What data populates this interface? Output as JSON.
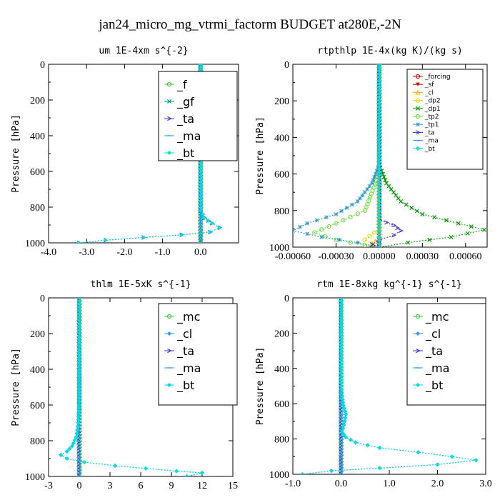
{
  "figure": {
    "title": "jan24_micro_mg_vtrmi_factorm  BUDGET at280E,-2N"
  },
  "chart_data": [
    {
      "type": "line",
      "title": "um   1E-4xm s^{-2}",
      "ylabel": "Pressure [hPa]",
      "xlim": [
        -4.0,
        1.0
      ],
      "ylim": [
        1000,
        0
      ],
      "xticks": [
        -4.0,
        -3.0,
        -2.0,
        -1.0,
        0.0
      ],
      "xtick_labels": [
        "-4.0",
        "-3.0",
        "-2.0",
        "-1.0",
        "0.0"
      ],
      "yticks": [
        0,
        200,
        400,
        600,
        800,
        1000
      ],
      "ytick_labels": [
        "0",
        "200",
        "400",
        "600",
        "800",
        "1000"
      ],
      "legend": {
        "position": "top-right",
        "size": "large"
      },
      "series": [
        {
          "name": "_f",
          "color": "#33cc33",
          "marker": "circle",
          "points": [
            [
              0,
              0
            ],
            [
              0,
              200
            ],
            [
              0,
              400
            ],
            [
              0,
              600
            ],
            [
              0,
              800
            ],
            [
              0,
              900
            ],
            [
              0,
              1000
            ]
          ]
        },
        {
          "name": "_gf",
          "color": "#009999",
          "marker": "x",
          "points": [
            [
              0,
              0
            ],
            [
              0,
              200
            ],
            [
              0,
              400
            ],
            [
              0,
              600
            ],
            [
              0,
              800
            ],
            [
              0,
              900
            ],
            [
              0,
              1000
            ]
          ]
        },
        {
          "name": "_ta",
          "color": "#3333cc",
          "marker": "arrow",
          "points": [
            [
              0,
              0
            ],
            [
              0,
              820
            ],
            [
              0.1,
              860
            ],
            [
              0.3,
              890
            ],
            [
              0.5,
              915
            ],
            [
              0.25,
              940
            ],
            [
              -0.5,
              955
            ],
            [
              -1.5,
              970
            ],
            [
              -2.5,
              985
            ],
            [
              -3.2,
              1000
            ]
          ]
        },
        {
          "name": "_ma",
          "color": "#3399ff",
          "marker": "dash",
          "points": [
            [
              0,
              0
            ],
            [
              0,
              1000
            ]
          ]
        },
        {
          "name": "_bt",
          "color": "#00dddd",
          "marker": "diamond",
          "points": [
            [
              0,
              0
            ],
            [
              0,
              820
            ],
            [
              0.1,
              860
            ],
            [
              0.3,
              890
            ],
            [
              0.5,
              915
            ],
            [
              0.25,
              940
            ],
            [
              -0.5,
              955
            ],
            [
              -1.5,
              970
            ],
            [
              -2.5,
              985
            ],
            [
              -3.2,
              1000
            ]
          ]
        }
      ]
    },
    {
      "type": "line",
      "title": "rtpthlp   1E-4x(kg K)/(kg s)",
      "ylabel": "Pressure [hPa]",
      "xlim": [
        -0.0006,
        0.00075
      ],
      "ylim": [
        1000,
        0
      ],
      "xticks": [
        -0.0006,
        -0.0003,
        0.0,
        0.0003,
        0.0006
      ],
      "xtick_labels": [
        "-0.00060",
        "-0.00030",
        "0.00000",
        "0.00030",
        "0.00060"
      ],
      "yticks": [
        0,
        200,
        400,
        600,
        800,
        1000
      ],
      "ytick_labels": [
        "0",
        "200",
        "400",
        "600",
        "800",
        "1000"
      ],
      "legend": {
        "position": "top-right",
        "size": "small"
      },
      "series": [
        {
          "name": "_forcing",
          "color": "#cc0000",
          "marker": "circle",
          "points": [
            [
              0,
              0
            ],
            [
              0,
              200
            ],
            [
              0,
              400
            ],
            [
              0,
              600
            ],
            [
              0,
              800
            ],
            [
              0,
              1000
            ]
          ]
        },
        {
          "name": "_sf",
          "color": "#cc0000",
          "marker": "triangle-down",
          "points": [
            [
              0,
              0
            ],
            [
              0,
              200
            ],
            [
              0,
              400
            ],
            [
              0,
              600
            ],
            [
              0,
              800
            ],
            [
              0,
              1000
            ]
          ]
        },
        {
          "name": "_cl",
          "color": "#ffaa00",
          "marker": "triangle-up",
          "points": [
            [
              0,
              0
            ],
            [
              0,
              950
            ],
            [
              -5e-05,
              985
            ],
            [
              0,
              1000
            ]
          ]
        },
        {
          "name": "_dp2",
          "color": "#dddd00",
          "marker": "circle",
          "points": [
            [
              0,
              0
            ],
            [
              0,
              900
            ],
            [
              -0.0001,
              960
            ],
            [
              0,
              1000
            ]
          ]
        },
        {
          "name": "_dp1",
          "color": "#009900",
          "marker": "x",
          "points": [
            [
              0,
              0
            ],
            [
              0,
              550
            ],
            [
              5e-05,
              650
            ],
            [
              0.00015,
              750
            ],
            [
              0.0003,
              820
            ],
            [
              0.00055,
              870
            ],
            [
              0.00073,
              905
            ],
            [
              0.0005,
              945
            ],
            [
              0.0002,
              975
            ],
            [
              0,
              1000
            ]
          ]
        },
        {
          "name": "_tp2",
          "color": "#66dd33",
          "marker": "circle",
          "points": [
            [
              0,
              0
            ],
            [
              0,
              600
            ],
            [
              -0.0001,
              800
            ],
            [
              -0.0003,
              870
            ],
            [
              -0.00045,
              920
            ],
            [
              -0.0003,
              960
            ],
            [
              -0.0001,
              990
            ],
            [
              0,
              1000
            ]
          ]
        },
        {
          "name": "_tp1",
          "color": "#3399cc",
          "marker": "star",
          "points": [
            [
              0,
              0
            ],
            [
              0,
              550
            ],
            [
              -5e-05,
              650
            ],
            [
              -0.00015,
              750
            ],
            [
              -0.0003,
              820
            ],
            [
              -0.0005,
              870
            ],
            [
              -0.0006,
              910
            ],
            [
              -0.0004,
              945
            ],
            [
              -0.00015,
              975
            ],
            [
              0,
              1000
            ]
          ]
        },
        {
          "name": "_ta",
          "color": "#3333cc",
          "marker": "arrow",
          "points": [
            [
              0,
              0
            ],
            [
              0,
              850
            ],
            [
              0.0001,
              880
            ],
            [
              0.00015,
              910
            ],
            [
              0.0001,
              935
            ],
            [
              0,
              960
            ],
            [
              -5e-05,
              985
            ],
            [
              0,
              1000
            ]
          ]
        },
        {
          "name": "_ma",
          "color": "#3399ff",
          "marker": "dash",
          "points": [
            [
              0,
              0
            ],
            [
              0,
              1000
            ]
          ]
        },
        {
          "name": "_bt",
          "color": "#00dddd",
          "marker": "diamond",
          "points": [
            [
              0,
              0
            ],
            [
              0,
              1000
            ]
          ]
        }
      ]
    },
    {
      "type": "line",
      "title": "thlm   1E-5xK s^{-1}",
      "ylabel": "Pressure [hPa]",
      "xlim": [
        -3,
        15
      ],
      "ylim": [
        1000,
        0
      ],
      "xticks": [
        -3,
        0,
        3,
        6,
        9,
        12,
        15
      ],
      "xtick_labels": [
        "-3",
        "0",
        "3",
        "6",
        "9",
        "12",
        "15"
      ],
      "yticks": [
        0,
        200,
        400,
        600,
        800,
        1000
      ],
      "ytick_labels": [
        "0",
        "200",
        "400",
        "600",
        "800",
        "1000"
      ],
      "legend": {
        "position": "top-right",
        "size": "large"
      },
      "series": [
        {
          "name": "_mc",
          "color": "#33cc33",
          "marker": "circle",
          "points": [
            [
              0,
              0
            ],
            [
              0,
              200
            ],
            [
              0,
              400
            ],
            [
              0,
              600
            ],
            [
              0,
              800
            ],
            [
              0,
              1000
            ]
          ]
        },
        {
          "name": "_cl",
          "color": "#3399ff",
          "marker": "diamond",
          "points": [
            [
              0,
              0
            ],
            [
              0,
              600
            ],
            [
              -0.1,
              700
            ],
            [
              -0.3,
              780
            ],
            [
              -0.7,
              830
            ],
            [
              -1.2,
              860
            ],
            [
              -1.8,
              880
            ],
            [
              -1.2,
              900
            ],
            [
              0.5,
              920
            ],
            [
              3.5,
              940
            ],
            [
              6.5,
              955
            ],
            [
              9.5,
              970
            ],
            [
              12,
              980
            ],
            [
              10.5,
              1000
            ]
          ]
        },
        {
          "name": "_ta",
          "color": "#3333cc",
          "marker": "arrow",
          "points": [
            [
              0,
              0
            ],
            [
              0,
              1000
            ]
          ]
        },
        {
          "name": "_ma",
          "color": "#3399ff",
          "marker": "dash",
          "points": [
            [
              0,
              0
            ],
            [
              0,
              1000
            ]
          ]
        },
        {
          "name": "_bt",
          "color": "#00dddd",
          "marker": "diamond",
          "points": [
            [
              0,
              0
            ],
            [
              0,
              600
            ],
            [
              -0.1,
              700
            ],
            [
              -0.3,
              780
            ],
            [
              -0.7,
              830
            ],
            [
              -1.2,
              860
            ],
            [
              -1.8,
              880
            ],
            [
              -1.2,
              900
            ],
            [
              0.5,
              920
            ],
            [
              3.5,
              940
            ],
            [
              6.5,
              955
            ],
            [
              9.5,
              970
            ],
            [
              12,
              980
            ],
            [
              10.5,
              1000
            ]
          ]
        }
      ]
    },
    {
      "type": "line",
      "title": "rtm   1E-8xkg kg^{-1} s^{-1}",
      "ylabel": "Pressure [hPa]",
      "xlim": [
        -1.0,
        3.0
      ],
      "ylim": [
        1000,
        0
      ],
      "xticks": [
        -1.0,
        0.0,
        1.0,
        2.0,
        3.0
      ],
      "xtick_labels": [
        "-1.0",
        "0.0",
        "1.0",
        "2.0",
        "3.0"
      ],
      "yticks": [
        0,
        200,
        400,
        600,
        800,
        1000
      ],
      "ytick_labels": [
        "0",
        "200",
        "400",
        "600",
        "800",
        "1000"
      ],
      "legend": {
        "position": "top-right",
        "size": "large"
      },
      "series": [
        {
          "name": "_mc",
          "color": "#33cc33",
          "marker": "circle",
          "points": [
            [
              0,
              0
            ],
            [
              0,
              200
            ],
            [
              0,
              400
            ],
            [
              0,
              600
            ],
            [
              0,
              800
            ],
            [
              0,
              1000
            ]
          ]
        },
        {
          "name": "_cl",
          "color": "#3399ff",
          "marker": "diamond",
          "points": [
            [
              0,
              0
            ],
            [
              0,
              500
            ],
            [
              0.02,
              560
            ],
            [
              0.05,
              610
            ],
            [
              0.1,
              660
            ],
            [
              0.06,
              720
            ],
            [
              0.02,
              760
            ],
            [
              0.1,
              790
            ],
            [
              0.3,
              820
            ],
            [
              0.8,
              850
            ],
            [
              1.6,
              875
            ],
            [
              2.3,
              900
            ],
            [
              2.8,
              920
            ],
            [
              2.0,
              945
            ],
            [
              0.8,
              965
            ],
            [
              -0.2,
              980
            ],
            [
              -0.8,
              1000
            ]
          ]
        },
        {
          "name": "_ta",
          "color": "#3333cc",
          "marker": "arrow",
          "points": [
            [
              0,
              0
            ],
            [
              0,
              1000
            ]
          ]
        },
        {
          "name": "_ma",
          "color": "#3399ff",
          "marker": "dash",
          "points": [
            [
              0,
              0
            ],
            [
              0,
              1000
            ]
          ]
        },
        {
          "name": "_bt",
          "color": "#00dddd",
          "marker": "diamond",
          "points": [
            [
              0,
              0
            ],
            [
              0,
              500
            ],
            [
              0.02,
              560
            ],
            [
              0.05,
              610
            ],
            [
              0.1,
              660
            ],
            [
              0.06,
              720
            ],
            [
              0.02,
              760
            ],
            [
              0.1,
              790
            ],
            [
              0.3,
              820
            ],
            [
              0.8,
              850
            ],
            [
              1.6,
              875
            ],
            [
              2.3,
              900
            ],
            [
              2.8,
              920
            ],
            [
              2.0,
              945
            ],
            [
              0.8,
              965
            ],
            [
              -0.2,
              980
            ],
            [
              -0.8,
              1000
            ]
          ]
        }
      ]
    }
  ]
}
